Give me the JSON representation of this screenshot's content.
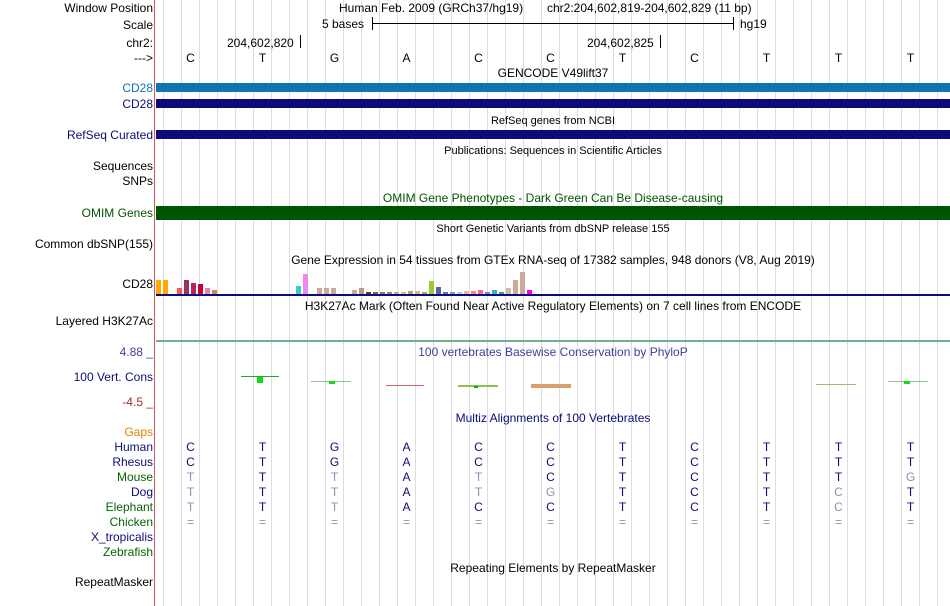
{
  "header": {
    "window_position_label": "Window Position",
    "assembly": "Human Feb. 2009 (GRCh37/hg19)",
    "position": "chr2:204,602,819-204,602,829 (11 bp)",
    "scale_label": "Scale",
    "scale_text": "5 bases",
    "scale_db": "hg19",
    "chrom_label": "chr2:",
    "coord1": "204,602,820",
    "coord2": "204,602,825",
    "strand_label": "--->"
  },
  "bases": [
    "C",
    "T",
    "G",
    "A",
    "C",
    "C",
    "T",
    "C",
    "T",
    "T",
    "T"
  ],
  "tracks": {
    "gencode_title": "GENCODE V49lift37",
    "gencode_labels": [
      "CD28",
      "CD28"
    ],
    "refseq_title": "RefSeq genes from NCBI",
    "refseq_label": "RefSeq Curated",
    "pubs_title": "Publications: Sequences in Scientific Articles",
    "sequences_label": "Sequences",
    "snps_label": "SNPs",
    "omim_title": "OMIM Gene Phenotypes - Dark Green Can Be Disease-causing",
    "omim_label": "OMIM Genes",
    "dbsnp_title": "Short Genetic Variants from dbSNP release 155",
    "dbsnp_label": "Common dbSNP(155)",
    "gtex_title": "Gene Expression in 54 tissues from GTEx RNA-seq of 17382 samples, 948 donors (V8, Aug 2019)",
    "gtex_label": "CD28",
    "h3k27ac_title": "H3K27Ac Mark (Often Found Near Active Regulatory Elements) on 7 cell lines from ENCODE",
    "h3k27ac_label": "Layered H3K27Ac",
    "cons_title": "100 vertebrates Basewise Conservation by PhyloP",
    "cons_label": "100 Vert. Cons",
    "cons_max": "4.88 _",
    "cons_min": "-4.5 _",
    "multiz_title": "Multiz Alignments of 100 Vertebrates",
    "gaps_label": "Gaps",
    "repeat_title": "Repeating Elements by RepeatMasker",
    "repeat_label": "RepeatMasker"
  },
  "gtex_values": [
    0.55,
    0.55,
    0.0,
    0.25,
    0.55,
    0.45,
    0.4,
    0.25,
    0.2,
    0.0,
    0.0,
    0.0,
    0.0,
    0.0,
    0.0,
    0.0,
    0.0,
    0.0,
    0.0,
    0.0,
    0.35,
    0.78,
    0.0,
    0.25,
    0.25,
    0.25,
    0.0,
    0.0,
    0.18,
    0.25,
    0.1,
    0.1,
    0.1,
    0.1,
    0.1,
    0.1,
    0.15,
    0.15,
    0.1,
    0.5,
    0.3,
    0.1,
    0.1,
    0.1,
    0.15,
    0.15,
    0.2,
    0.1,
    0.2,
    0.1,
    0.25,
    0.55,
    0.85,
    0.2
  ],
  "gtex_colors": [
    "#FFAA00",
    "#FFAA00",
    "#FFAA00",
    "#FF5555",
    "#993366",
    "#BB2255",
    "#CC0033",
    "#DD88AA",
    "#CC8855",
    "#EEBB77",
    "#EEBB77",
    "#DDDDDD",
    "#BBBBBB",
    "#999999",
    "#AAAAAA",
    "#8888CC",
    "#99BBEE",
    "#DDCC88",
    "#88CC88",
    "#66AA66",
    "#33CCCC",
    "#EE88EE",
    "#AA8866",
    "#CCAA99",
    "#CCAA99",
    "#CCAA99",
    "#CCAA99",
    "#DDBBAA",
    "#CCAA99",
    "#BB9988",
    "#663333",
    "#776655",
    "#887766",
    "#998877",
    "#BBAA99",
    "#CCBBAA",
    "#AAAA66",
    "#CCBB88",
    "#99AA55",
    "#99CC33",
    "#556699",
    "#5577AA",
    "#7799CC",
    "#AACCEE",
    "#DDBBAA",
    "#FF8866",
    "#FF6688",
    "#6688DD",
    "#44AACC",
    "#33AA66",
    "#CCBBAA",
    "#CCAA99",
    "#CCAA99",
    "#FF00DD"
  ],
  "species": [
    {
      "name": "Human",
      "bases": [
        "C",
        "T",
        "G",
        "A",
        "C",
        "C",
        "T",
        "C",
        "T",
        "T",
        "T"
      ],
      "dim": []
    },
    {
      "name": "Rhesus",
      "bases": [
        "C",
        "T",
        "G",
        "A",
        "C",
        "C",
        "T",
        "C",
        "T",
        "T",
        "T"
      ],
      "dim": []
    },
    {
      "name": "Mouse",
      "bases": [
        "T",
        "T",
        "T",
        "A",
        "T",
        "C",
        "T",
        "C",
        "T",
        "T",
        "G"
      ],
      "dim": [
        0,
        2,
        4,
        10
      ]
    },
    {
      "name": "Dog",
      "bases": [
        "T",
        "T",
        "T",
        "A",
        "T",
        "G",
        "T",
        "C",
        "T",
        "C",
        "T"
      ],
      "dim": [
        0,
        2,
        4,
        5,
        9
      ]
    },
    {
      "name": "Elephant",
      "bases": [
        "T",
        "T",
        "T",
        "A",
        "C",
        "C",
        "T",
        "C",
        "T",
        "C",
        "T"
      ],
      "dim": [
        0,
        2,
        9
      ]
    },
    {
      "name": "Chicken",
      "bases": [
        "=",
        "=",
        "=",
        "=",
        "=",
        "=",
        "=",
        "=",
        "=",
        "=",
        "="
      ],
      "dim": []
    },
    {
      "name": "X_tropicalis",
      "bases": [],
      "dim": []
    },
    {
      "name": "Zebrafish",
      "bases": [],
      "dim": []
    }
  ],
  "colors": {
    "gencode_light": "#1173B2",
    "gencode_dark": "#0C0C78",
    "omim": "#005500",
    "species_text": "#0C0C78",
    "species_green": "#006600",
    "gaps": "#DD8800",
    "cons_max": "#3D3D9E",
    "cons_min": "#B02A2A"
  }
}
